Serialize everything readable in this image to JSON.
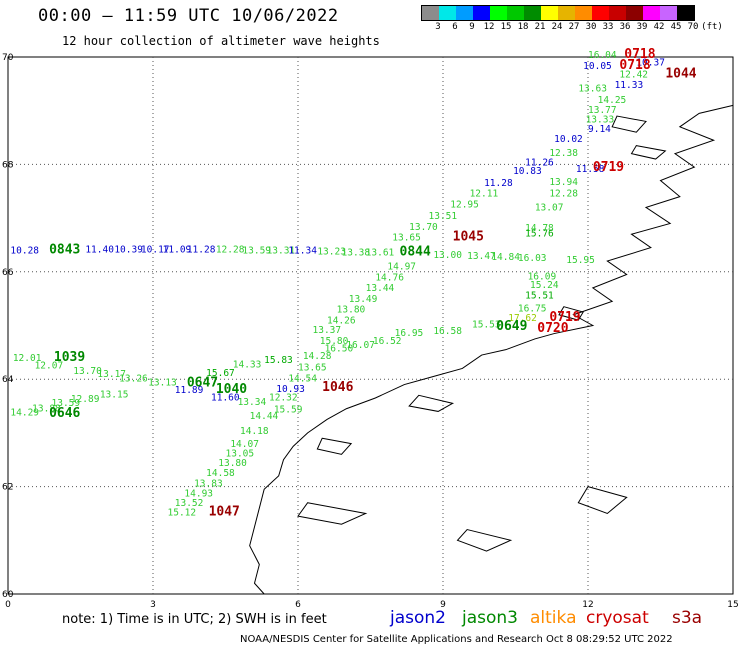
{
  "header": {
    "title": "00:00 – 11:59 UTC 10/06/2022",
    "subtitle": "12 hour collection of altimeter wave heights"
  },
  "legend": {
    "unit_label": "(ft)",
    "bins": [
      {
        "label": "3",
        "color": "#8c8c8c"
      },
      {
        "label": "6",
        "color": "#00e8e8"
      },
      {
        "label": "9",
        "color": "#009cff"
      },
      {
        "label": "12",
        "color": "#0000ff"
      },
      {
        "label": "15",
        "color": "#00ff00"
      },
      {
        "label": "18",
        "color": "#00c800"
      },
      {
        "label": "21",
        "color": "#008c00"
      },
      {
        "label": "24",
        "color": "#ffff00"
      },
      {
        "label": "27",
        "color": "#e6b400"
      },
      {
        "label": "30",
        "color": "#ff8c00"
      },
      {
        "label": "33",
        "color": "#ff0000"
      },
      {
        "label": "36",
        "color": "#c80000"
      },
      {
        "label": "39",
        "color": "#8c0000"
      },
      {
        "label": "42",
        "color": "#ff00ff"
      },
      {
        "label": "45",
        "color": "#c864ff"
      },
      {
        "label": "70",
        "color": "#000000"
      }
    ]
  },
  "map": {
    "lon_ticks": [
      "0",
      "3",
      "6",
      "9",
      "12",
      "15"
    ],
    "lat_ticks": [
      "70",
      "68",
      "66",
      "64",
      "62",
      "60"
    ],
    "readings": [
      {
        "text": "16.04",
        "lon": 12.0,
        "lat": 69.98,
        "color": "#33cc33"
      },
      {
        "text": "0718",
        "lon": 12.75,
        "lat": 69.98,
        "color": "#cc0000",
        "big": true
      },
      {
        "text": "10.37",
        "lon": 13.0,
        "lat": 69.84,
        "color": "#0000cc"
      },
      {
        "text": "10.05",
        "lon": 11.9,
        "lat": 69.78,
        "color": "#0000cc"
      },
      {
        "text": "0718",
        "lon": 12.65,
        "lat": 69.78,
        "color": "#cc0000",
        "big": true
      },
      {
        "text": "12.42",
        "lon": 12.65,
        "lat": 69.62,
        "color": "#33cc33"
      },
      {
        "text": "1044",
        "lon": 13.6,
        "lat": 69.62,
        "color": "#990000",
        "big": true
      },
      {
        "text": "11.33",
        "lon": 12.55,
        "lat": 69.42,
        "color": "#0000cc"
      },
      {
        "text": "13.63",
        "lon": 11.8,
        "lat": 69.36,
        "color": "#33cc33"
      },
      {
        "text": "14.25",
        "lon": 12.2,
        "lat": 69.14,
        "color": "#33cc33"
      },
      {
        "text": "13.77",
        "lon": 12.0,
        "lat": 68.96,
        "color": "#33cc33"
      },
      {
        "text": "13.33",
        "lon": 11.95,
        "lat": 68.78,
        "color": "#33cc33"
      },
      {
        "text": "9.14",
        "lon": 12.0,
        "lat": 68.6,
        "color": "#0000cc"
      },
      {
        "text": "10.02",
        "lon": 11.3,
        "lat": 68.42,
        "color": "#0000cc"
      },
      {
        "text": "12.38",
        "lon": 11.2,
        "lat": 68.16,
        "color": "#33cc33"
      },
      {
        "text": "11.26",
        "lon": 10.7,
        "lat": 67.98,
        "color": "#0000cc"
      },
      {
        "text": "11.58",
        "lon": 11.75,
        "lat": 67.86,
        "color": "#0000cc"
      },
      {
        "text": "0719",
        "lon": 12.1,
        "lat": 67.88,
        "color": "#cc0000",
        "big": true
      },
      {
        "text": "10.83",
        "lon": 10.45,
        "lat": 67.82,
        "color": "#0000cc"
      },
      {
        "text": "11.28",
        "lon": 9.85,
        "lat": 67.6,
        "color": "#0000cc"
      },
      {
        "text": "13.94",
        "lon": 11.2,
        "lat": 67.62,
        "color": "#33cc33"
      },
      {
        "text": "12.11",
        "lon": 9.55,
        "lat": 67.4,
        "color": "#33cc33"
      },
      {
        "text": "12.28",
        "lon": 11.2,
        "lat": 67.4,
        "color": "#33cc33"
      },
      {
        "text": "12.95",
        "lon": 9.15,
        "lat": 67.2,
        "color": "#33cc33"
      },
      {
        "text": "13.07",
        "lon": 10.9,
        "lat": 67.14,
        "color": "#33cc33"
      },
      {
        "text": "13.51",
        "lon": 8.7,
        "lat": 66.98,
        "color": "#33cc33"
      },
      {
        "text": "13.70",
        "lon": 8.3,
        "lat": 66.78,
        "color": "#33cc33"
      },
      {
        "text": "14.78",
        "lon": 10.7,
        "lat": 66.76,
        "color": "#33cc33"
      },
      {
        "text": "15.76",
        "lon": 10.7,
        "lat": 66.66,
        "color": "#00aa00"
      },
      {
        "text": "1045",
        "lon": 9.2,
        "lat": 66.58,
        "color": "#990000",
        "big": true
      },
      {
        "text": "13.65",
        "lon": 7.95,
        "lat": 66.58,
        "color": "#33cc33"
      },
      {
        "text": "10.28",
        "lon": 0.05,
        "lat": 66.34,
        "color": "#0000cc"
      },
      {
        "text": "0843",
        "lon": 0.85,
        "lat": 66.34,
        "color": "#008800",
        "big": true
      },
      {
        "text": "11.40",
        "lon": 1.6,
        "lat": 66.36,
        "color": "#0000cc"
      },
      {
        "text": "10.39",
        "lon": 2.2,
        "lat": 66.36,
        "color": "#0000cc"
      },
      {
        "text": "10.17",
        "lon": 2.75,
        "lat": 66.36,
        "color": "#0000cc"
      },
      {
        "text": "11.09",
        "lon": 3.2,
        "lat": 66.36,
        "color": "#0000cc"
      },
      {
        "text": "11.28",
        "lon": 3.7,
        "lat": 66.36,
        "color": "#0000cc"
      },
      {
        "text": "12.28",
        "lon": 4.3,
        "lat": 66.36,
        "color": "#33cc33"
      },
      {
        "text": "13.59",
        "lon": 4.85,
        "lat": 66.34,
        "color": "#33cc33"
      },
      {
        "text": "13.31",
        "lon": 5.35,
        "lat": 66.34,
        "color": "#33cc33"
      },
      {
        "text": "11.34",
        "lon": 5.8,
        "lat": 66.34,
        "color": "#0000cc"
      },
      {
        "text": "13.23",
        "lon": 6.4,
        "lat": 66.32,
        "color": "#33cc33"
      },
      {
        "text": "13.38",
        "lon": 6.9,
        "lat": 66.3,
        "color": "#33cc33"
      },
      {
        "text": "13.61",
        "lon": 7.4,
        "lat": 66.3,
        "color": "#33cc33"
      },
      {
        "text": "0844",
        "lon": 8.1,
        "lat": 66.3,
        "color": "#008800",
        "big": true
      },
      {
        "text": "13.00",
        "lon": 8.8,
        "lat": 66.26,
        "color": "#33cc33"
      },
      {
        "text": "13.47",
        "lon": 9.5,
        "lat": 66.24,
        "color": "#33cc33"
      },
      {
        "text": "14.84",
        "lon": 10.0,
        "lat": 66.22,
        "color": "#33cc33"
      },
      {
        "text": "16.03",
        "lon": 10.55,
        "lat": 66.2,
        "color": "#33cc33"
      },
      {
        "text": "15.95",
        "lon": 11.55,
        "lat": 66.16,
        "color": "#33cc33"
      },
      {
        "text": "14.97",
        "lon": 7.85,
        "lat": 66.04,
        "color": "#33cc33"
      },
      {
        "text": "14.76",
        "lon": 7.6,
        "lat": 65.84,
        "color": "#33cc33"
      },
      {
        "text": "16.09",
        "lon": 10.75,
        "lat": 65.86,
        "color": "#33cc33"
      },
      {
        "text": "15.24",
        "lon": 10.8,
        "lat": 65.7,
        "color": "#33cc33"
      },
      {
        "text": "13.44",
        "lon": 7.4,
        "lat": 65.64,
        "color": "#33cc33"
      },
      {
        "text": "15.51",
        "lon": 10.7,
        "lat": 65.5,
        "color": "#00aa00"
      },
      {
        "text": "13.49",
        "lon": 7.05,
        "lat": 65.44,
        "color": "#33cc33"
      },
      {
        "text": "16.75",
        "lon": 10.55,
        "lat": 65.26,
        "color": "#33cc33"
      },
      {
        "text": "13.80",
        "lon": 6.8,
        "lat": 65.24,
        "color": "#33cc33"
      },
      {
        "text": "17.62",
        "lon": 10.35,
        "lat": 65.08,
        "color": "#99cc00"
      },
      {
        "text": "0719",
        "lon": 11.2,
        "lat": 65.08,
        "color": "#cc0000",
        "big": true
      },
      {
        "text": "14.26",
        "lon": 6.6,
        "lat": 65.04,
        "color": "#33cc33"
      },
      {
        "text": "15.53",
        "lon": 9.6,
        "lat": 64.96,
        "color": "#33cc33"
      },
      {
        "text": "0649",
        "lon": 10.1,
        "lat": 64.92,
        "color": "#008800",
        "big": true
      },
      {
        "text": "0720",
        "lon": 10.95,
        "lat": 64.88,
        "color": "#cc0000",
        "big": true
      },
      {
        "text": "13.37",
        "lon": 6.3,
        "lat": 64.86,
        "color": "#33cc33"
      },
      {
        "text": "16.58",
        "lon": 8.8,
        "lat": 64.84,
        "color": "#33cc33"
      },
      {
        "text": "16.95",
        "lon": 8.0,
        "lat": 64.8,
        "color": "#33cc33"
      },
      {
        "text": "15.80",
        "lon": 6.45,
        "lat": 64.66,
        "color": "#33cc33"
      },
      {
        "text": "16.52",
        "lon": 7.55,
        "lat": 64.66,
        "color": "#33cc33"
      },
      {
        "text": "16.07",
        "lon": 7.0,
        "lat": 64.58,
        "color": "#33cc33"
      },
      {
        "text": "16.50",
        "lon": 6.55,
        "lat": 64.52,
        "color": "#33cc33"
      },
      {
        "text": "14.28",
        "lon": 6.1,
        "lat": 64.38,
        "color": "#33cc33"
      },
      {
        "text": "15.83",
        "lon": 5.3,
        "lat": 64.3,
        "color": "#00aa00"
      },
      {
        "text": "12.01",
        "lon": 0.1,
        "lat": 64.34,
        "color": "#33cc33"
      },
      {
        "text": "1039",
        "lon": 0.95,
        "lat": 64.34,
        "color": "#008800",
        "big": true
      },
      {
        "text": "12.07",
        "lon": 0.55,
        "lat": 64.2,
        "color": "#33cc33"
      },
      {
        "text": "14.33",
        "lon": 4.65,
        "lat": 64.22,
        "color": "#33cc33"
      },
      {
        "text": "13.65",
        "lon": 6.0,
        "lat": 64.16,
        "color": "#33cc33"
      },
      {
        "text": "13.70",
        "lon": 1.35,
        "lat": 64.1,
        "color": "#33cc33"
      },
      {
        "text": "15.67",
        "lon": 4.1,
        "lat": 64.06,
        "color": "#00aa00"
      },
      {
        "text": "13.17",
        "lon": 1.85,
        "lat": 64.04,
        "color": "#33cc33"
      },
      {
        "text": "14.54",
        "lon": 5.8,
        "lat": 63.96,
        "color": "#33cc33"
      },
      {
        "text": "13.26",
        "lon": 2.3,
        "lat": 63.96,
        "color": "#33cc33"
      },
      {
        "text": "0647",
        "lon": 3.7,
        "lat": 63.86,
        "color": "#008800",
        "big": true
      },
      {
        "text": "13.13",
        "lon": 2.9,
        "lat": 63.88,
        "color": "#33cc33"
      },
      {
        "text": "11.89",
        "lon": 3.45,
        "lat": 63.74,
        "color": "#0000cc"
      },
      {
        "text": "10.93",
        "lon": 5.55,
        "lat": 63.76,
        "color": "#0000cc"
      },
      {
        "text": "1046",
        "lon": 6.5,
        "lat": 63.78,
        "color": "#990000",
        "big": true
      },
      {
        "text": "1040",
        "lon": 4.3,
        "lat": 63.74,
        "color": "#008800",
        "big": true
      },
      {
        "text": "11.60",
        "lon": 4.2,
        "lat": 63.6,
        "color": "#0000cc"
      },
      {
        "text": "12.32",
        "lon": 5.4,
        "lat": 63.6,
        "color": "#33cc33"
      },
      {
        "text": "13.15",
        "lon": 1.9,
        "lat": 63.66,
        "color": "#33cc33"
      },
      {
        "text": "12.89",
        "lon": 1.3,
        "lat": 63.58,
        "color": "#33cc33"
      },
      {
        "text": "13.59",
        "lon": 0.9,
        "lat": 63.5,
        "color": "#33cc33"
      },
      {
        "text": "13.34",
        "lon": 4.75,
        "lat": 63.52,
        "color": "#33cc33"
      },
      {
        "text": "13.88",
        "lon": 0.5,
        "lat": 63.4,
        "color": "#33cc33"
      },
      {
        "text": "15.59",
        "lon": 5.5,
        "lat": 63.38,
        "color": "#33cc33"
      },
      {
        "text": "14.29",
        "lon": 0.05,
        "lat": 63.32,
        "color": "#33cc33"
      },
      {
        "text": "0646",
        "lon": 0.85,
        "lat": 63.3,
        "color": "#008800",
        "big": true
      },
      {
        "text": "14.44",
        "lon": 5.0,
        "lat": 63.26,
        "color": "#33cc33"
      },
      {
        "text": "14.18",
        "lon": 4.8,
        "lat": 62.98,
        "color": "#33cc33"
      },
      {
        "text": "14.07",
        "lon": 4.6,
        "lat": 62.74,
        "color": "#33cc33"
      },
      {
        "text": "13.05",
        "lon": 4.5,
        "lat": 62.56,
        "color": "#33cc33"
      },
      {
        "text": "13.80",
        "lon": 4.35,
        "lat": 62.38,
        "color": "#33cc33"
      },
      {
        "text": "14.58",
        "lon": 4.1,
        "lat": 62.2,
        "color": "#33cc33"
      },
      {
        "text": "13.83",
        "lon": 3.85,
        "lat": 62.0,
        "color": "#33cc33"
      },
      {
        "text": "14.93",
        "lon": 3.65,
        "lat": 61.82,
        "color": "#33cc33"
      },
      {
        "text": "13.52",
        "lon": 3.45,
        "lat": 61.64,
        "color": "#33cc33"
      },
      {
        "text": "15.12",
        "lon": 3.3,
        "lat": 61.46,
        "color": "#33cc33"
      },
      {
        "text": "1047",
        "lon": 4.15,
        "lat": 61.46,
        "color": "#990000",
        "big": true
      }
    ]
  },
  "footer": {
    "note": "note: 1) Time is in UTC; 2) SWH is in feet",
    "satellites": [
      {
        "name": "jason2",
        "color": "#0000cc"
      },
      {
        "name": "jason3",
        "color": "#008800"
      },
      {
        "name": "altika",
        "color": "#ff8c00"
      },
      {
        "name": "cryosat",
        "color": "#cc0000"
      },
      {
        "name": "s3a",
        "color": "#990000"
      }
    ],
    "credit": "NOAA/NESDIS Center for Satellite Applications and Research    Oct  8 08:29:52 UTC 2022"
  }
}
